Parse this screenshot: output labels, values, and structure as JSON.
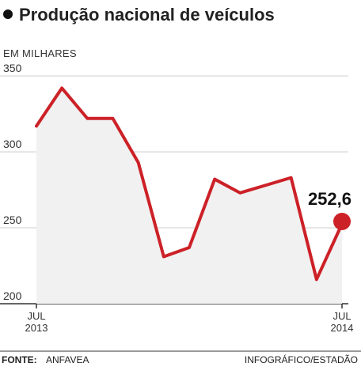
{
  "header": {
    "title": "Produção nacional de veículos",
    "unit": "EM MILHARES"
  },
  "footer": {
    "source_label": "FONTE:",
    "source_name": "ANFAVEA",
    "credit": "INFOGRÁFICO/ESTADÃO"
  },
  "colors": {
    "line": "#cc2127",
    "area": "#f1f1f1",
    "grid": "#cfcfcf",
    "axis": "#333333"
  },
  "chart_data": {
    "type": "line",
    "title": "Produção nacional de veículos",
    "ylabel": "EM MILHARES",
    "ylim": [
      200,
      350
    ],
    "yticks": [
      200,
      250,
      300,
      350
    ],
    "x_tick_labels": [
      {
        "index": 0,
        "line1": "JUL",
        "line2": "2013"
      },
      {
        "index": 12,
        "line1": "JUL",
        "line2": "2014"
      }
    ],
    "series": [
      {
        "values": [
          317,
          342,
          322,
          322,
          293,
          231,
          237,
          282,
          273,
          278,
          283,
          216,
          252.6
        ]
      }
    ],
    "last_value_label": "252,6",
    "grid": true
  }
}
